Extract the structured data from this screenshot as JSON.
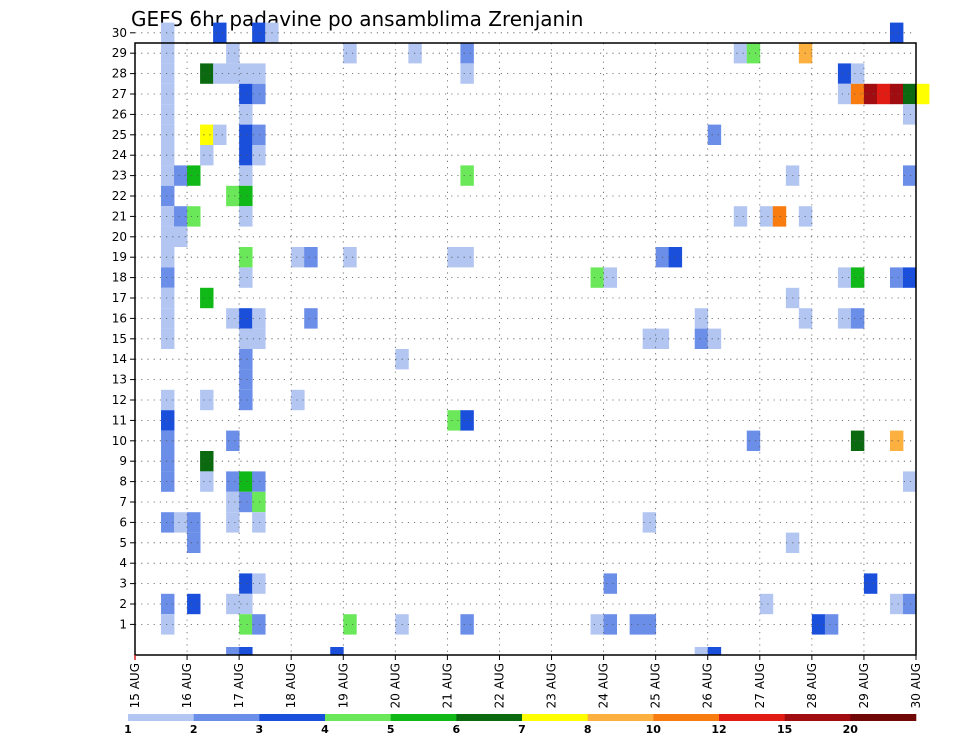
{
  "chart_data": {
    "type": "heatmap",
    "title": "GEFS 6hr padavine po ansamblima Zrenjanin",
    "x_tick_labels": [
      "15 AUG",
      "16 AUG",
      "17 AUG",
      "18 AUG",
      "19 AUG",
      "20 AUG",
      "21 AUG",
      "22 AUG",
      "23 AUG",
      "24 AUG",
      "25 AUG",
      "26 AUG",
      "27 AUG",
      "28 AUG",
      "29 AUG",
      "30 AUG"
    ],
    "y_tick_labels": [
      "1",
      "2",
      "3",
      "4",
      "5",
      "6",
      "7",
      "8",
      "9",
      "10",
      "11",
      "12",
      "13",
      "14",
      "15",
      "16",
      "17",
      "18",
      "19",
      "20",
      "21",
      "22",
      "23",
      "24",
      "25",
      "26",
      "27",
      "28",
      "29",
      "30"
    ],
    "grid": true,
    "colorbar": {
      "levels": [
        "1",
        "2",
        "3",
        "4",
        "5",
        "6",
        "7",
        "8",
        "10",
        "12",
        "15",
        "20"
      ],
      "colors": [
        "#b3c6f2",
        "#6b8ee8",
        "#1a4fdc",
        "#6be85a",
        "#10b818",
        "#0b6a10",
        "#ffff00",
        "#fcb040",
        "#f87c10",
        "#e01c14",
        "#a00c10",
        "#700808"
      ]
    },
    "cells": [
      {
        "m": 30,
        "s": 2,
        "c": 1
      },
      {
        "m": 30,
        "s": 6,
        "c": 3
      },
      {
        "m": 30,
        "s": 9,
        "c": 3
      },
      {
        "m": 30,
        "s": 10,
        "c": 1
      },
      {
        "m": 30,
        "s": 58,
        "c": 3
      },
      {
        "m": 29,
        "s": 2,
        "c": 1
      },
      {
        "m": 29,
        "s": 7,
        "c": 1
      },
      {
        "m": 29,
        "s": 16,
        "c": 1
      },
      {
        "m": 29,
        "s": 21,
        "c": 1
      },
      {
        "m": 29,
        "s": 25,
        "c": 2
      },
      {
        "m": 29,
        "s": 46,
        "c": 1
      },
      {
        "m": 29,
        "s": 47,
        "c": 4
      },
      {
        "m": 29,
        "s": 51,
        "c": 8
      },
      {
        "m": 28,
        "s": 2,
        "c": 1
      },
      {
        "m": 28,
        "s": 5,
        "c": 6
      },
      {
        "m": 28,
        "s": 6,
        "c": 1
      },
      {
        "m": 28,
        "s": 7,
        "c": 1
      },
      {
        "m": 28,
        "s": 8,
        "c": 1
      },
      {
        "m": 28,
        "s": 9,
        "c": 1
      },
      {
        "m": 28,
        "s": 25,
        "c": 1
      },
      {
        "m": 28,
        "s": 54,
        "c": 3
      },
      {
        "m": 28,
        "s": 55,
        "c": 1
      },
      {
        "m": 27,
        "s": 2,
        "c": 1
      },
      {
        "m": 27,
        "s": 8,
        "c": 3
      },
      {
        "m": 27,
        "s": 9,
        "c": 2
      },
      {
        "m": 27,
        "s": 54,
        "c": 1
      },
      {
        "m": 27,
        "s": 55,
        "c": 9
      },
      {
        "m": 27,
        "s": 56,
        "c": 11
      },
      {
        "m": 27,
        "s": 57,
        "c": 10
      },
      {
        "m": 27,
        "s": 58,
        "c": 11
      },
      {
        "m": 27,
        "s": 59,
        "c": 6
      },
      {
        "m": 27,
        "s": 60,
        "c": 7
      },
      {
        "m": 26,
        "s": 2,
        "c": 1
      },
      {
        "m": 26,
        "s": 8,
        "c": 1
      },
      {
        "m": 26,
        "s": 59,
        "c": 1
      },
      {
        "m": 25,
        "s": 2,
        "c": 1
      },
      {
        "m": 25,
        "s": 5,
        "c": 7
      },
      {
        "m": 25,
        "s": 6,
        "c": 1
      },
      {
        "m": 25,
        "s": 8,
        "c": 3
      },
      {
        "m": 25,
        "s": 9,
        "c": 2
      },
      {
        "m": 25,
        "s": 44,
        "c": 2
      },
      {
        "m": 24,
        "s": 2,
        "c": 1
      },
      {
        "m": 24,
        "s": 5,
        "c": 1
      },
      {
        "m": 24,
        "s": 8,
        "c": 3
      },
      {
        "m": 24,
        "s": 9,
        "c": 1
      },
      {
        "m": 23,
        "s": 2,
        "c": 1
      },
      {
        "m": 23,
        "s": 3,
        "c": 2
      },
      {
        "m": 23,
        "s": 4,
        "c": 5
      },
      {
        "m": 23,
        "s": 8,
        "c": 1
      },
      {
        "m": 23,
        "s": 25,
        "c": 4
      },
      {
        "m": 23,
        "s": 50,
        "c": 1
      },
      {
        "m": 23,
        "s": 59,
        "c": 2
      },
      {
        "m": 22,
        "s": 2,
        "c": 2
      },
      {
        "m": 22,
        "s": 7,
        "c": 4
      },
      {
        "m": 22,
        "s": 8,
        "c": 5
      },
      {
        "m": 21,
        "s": 2,
        "c": 1
      },
      {
        "m": 21,
        "s": 3,
        "c": 2
      },
      {
        "m": 21,
        "s": 4,
        "c": 4
      },
      {
        "m": 21,
        "s": 8,
        "c": 1
      },
      {
        "m": 21,
        "s": 46,
        "c": 1
      },
      {
        "m": 21,
        "s": 48,
        "c": 1
      },
      {
        "m": 21,
        "s": 49,
        "c": 9
      },
      {
        "m": 21,
        "s": 51,
        "c": 1
      },
      {
        "m": 20,
        "s": 2,
        "c": 1
      },
      {
        "m": 20,
        "s": 3,
        "c": 1
      },
      {
        "m": 19,
        "s": 2,
        "c": 1
      },
      {
        "m": 19,
        "s": 8,
        "c": 4
      },
      {
        "m": 19,
        "s": 12,
        "c": 1
      },
      {
        "m": 19,
        "s": 13,
        "c": 2
      },
      {
        "m": 19,
        "s": 16,
        "c": 1
      },
      {
        "m": 19,
        "s": 24,
        "c": 1
      },
      {
        "m": 19,
        "s": 25,
        "c": 1
      },
      {
        "m": 19,
        "s": 40,
        "c": 2
      },
      {
        "m": 19,
        "s": 41,
        "c": 3
      },
      {
        "m": 18,
        "s": 2,
        "c": 2
      },
      {
        "m": 18,
        "s": 8,
        "c": 1
      },
      {
        "m": 18,
        "s": 35,
        "c": 4
      },
      {
        "m": 18,
        "s": 36,
        "c": 1
      },
      {
        "m": 18,
        "s": 54,
        "c": 1
      },
      {
        "m": 18,
        "s": 55,
        "c": 5
      },
      {
        "m": 18,
        "s": 58,
        "c": 2
      },
      {
        "m": 18,
        "s": 59,
        "c": 3
      },
      {
        "m": 17,
        "s": 2,
        "c": 1
      },
      {
        "m": 17,
        "s": 5,
        "c": 5
      },
      {
        "m": 17,
        "s": 50,
        "c": 1
      },
      {
        "m": 16,
        "s": 2,
        "c": 1
      },
      {
        "m": 16,
        "s": 7,
        "c": 1
      },
      {
        "m": 16,
        "s": 8,
        "c": 3
      },
      {
        "m": 16,
        "s": 9,
        "c": 1
      },
      {
        "m": 16,
        "s": 13,
        "c": 2
      },
      {
        "m": 16,
        "s": 43,
        "c": 1
      },
      {
        "m": 16,
        "s": 51,
        "c": 1
      },
      {
        "m": 16,
        "s": 54,
        "c": 1
      },
      {
        "m": 16,
        "s": 55,
        "c": 2
      },
      {
        "m": 15,
        "s": 2,
        "c": 1
      },
      {
        "m": 15,
        "s": 8,
        "c": 1
      },
      {
        "m": 15,
        "s": 9,
        "c": 1
      },
      {
        "m": 15,
        "s": 39,
        "c": 1
      },
      {
        "m": 15,
        "s": 40,
        "c": 1
      },
      {
        "m": 15,
        "s": 43,
        "c": 2
      },
      {
        "m": 15,
        "s": 44,
        "c": 1
      },
      {
        "m": 14,
        "s": 8,
        "c": 2
      },
      {
        "m": 14,
        "s": 20,
        "c": 1
      },
      {
        "m": 13,
        "s": 8,
        "c": 2
      },
      {
        "m": 12,
        "s": 2,
        "c": 1
      },
      {
        "m": 12,
        "s": 5,
        "c": 1
      },
      {
        "m": 12,
        "s": 8,
        "c": 2
      },
      {
        "m": 12,
        "s": 12,
        "c": 1
      },
      {
        "m": 11,
        "s": 2,
        "c": 3
      },
      {
        "m": 11,
        "s": 24,
        "c": 4
      },
      {
        "m": 11,
        "s": 25,
        "c": 3
      },
      {
        "m": 10,
        "s": 2,
        "c": 2
      },
      {
        "m": 10,
        "s": 7,
        "c": 2
      },
      {
        "m": 10,
        "s": 47,
        "c": 2
      },
      {
        "m": 10,
        "s": 55,
        "c": 6
      },
      {
        "m": 10,
        "s": 58,
        "c": 8
      },
      {
        "m": 9,
        "s": 2,
        "c": 2
      },
      {
        "m": 9,
        "s": 5,
        "c": 6
      },
      {
        "m": 8,
        "s": 2,
        "c": 2
      },
      {
        "m": 8,
        "s": 5,
        "c": 1
      },
      {
        "m": 8,
        "s": 7,
        "c": 2
      },
      {
        "m": 8,
        "s": 8,
        "c": 5
      },
      {
        "m": 8,
        "s": 9,
        "c": 2
      },
      {
        "m": 8,
        "s": 59,
        "c": 1
      },
      {
        "m": 7,
        "s": 7,
        "c": 1
      },
      {
        "m": 7,
        "s": 8,
        "c": 2
      },
      {
        "m": 7,
        "s": 9,
        "c": 4
      },
      {
        "m": 6,
        "s": 2,
        "c": 2
      },
      {
        "m": 6,
        "s": 3,
        "c": 1
      },
      {
        "m": 6,
        "s": 4,
        "c": 2
      },
      {
        "m": 6,
        "s": 7,
        "c": 1
      },
      {
        "m": 6,
        "s": 9,
        "c": 1
      },
      {
        "m": 6,
        "s": 39,
        "c": 1
      },
      {
        "m": 5,
        "s": 4,
        "c": 2
      },
      {
        "m": 5,
        "s": 50,
        "c": 1
      },
      {
        "m": 3,
        "s": 8,
        "c": 3
      },
      {
        "m": 3,
        "s": 9,
        "c": 1
      },
      {
        "m": 3,
        "s": 36,
        "c": 2
      },
      {
        "m": 3,
        "s": 56,
        "c": 3
      },
      {
        "m": 2,
        "s": 2,
        "c": 2
      },
      {
        "m": 2,
        "s": 4,
        "c": 3
      },
      {
        "m": 2,
        "s": 7,
        "c": 1
      },
      {
        "m": 2,
        "s": 8,
        "c": 1
      },
      {
        "m": 2,
        "s": 48,
        "c": 1
      },
      {
        "m": 2,
        "s": 58,
        "c": 1
      },
      {
        "m": 2,
        "s": 59,
        "c": 2
      },
      {
        "m": 1,
        "s": 2,
        "c": 1
      },
      {
        "m": 1,
        "s": 8,
        "c": 4
      },
      {
        "m": 1,
        "s": 9,
        "c": 2
      },
      {
        "m": 1,
        "s": 16,
        "c": 4
      },
      {
        "m": 1,
        "s": 20,
        "c": 1
      },
      {
        "m": 1,
        "s": 25,
        "c": 2
      },
      {
        "m": 1,
        "s": 35,
        "c": 1
      },
      {
        "m": 1,
        "s": 36,
        "c": 2
      },
      {
        "m": 1,
        "s": 38,
        "c": 2
      },
      {
        "m": 1,
        "s": 39,
        "c": 2
      },
      {
        "m": 1,
        "s": 52,
        "c": 3
      },
      {
        "m": 1,
        "s": 53,
        "c": 2
      },
      {
        "m": 0,
        "s": 7,
        "c": 2
      },
      {
        "m": 0,
        "s": 8,
        "c": 3
      },
      {
        "m": 0,
        "s": 15,
        "c": 3
      },
      {
        "m": 0,
        "s": 43,
        "c": 1
      },
      {
        "m": 0,
        "s": 44,
        "c": 3
      }
    ]
  }
}
